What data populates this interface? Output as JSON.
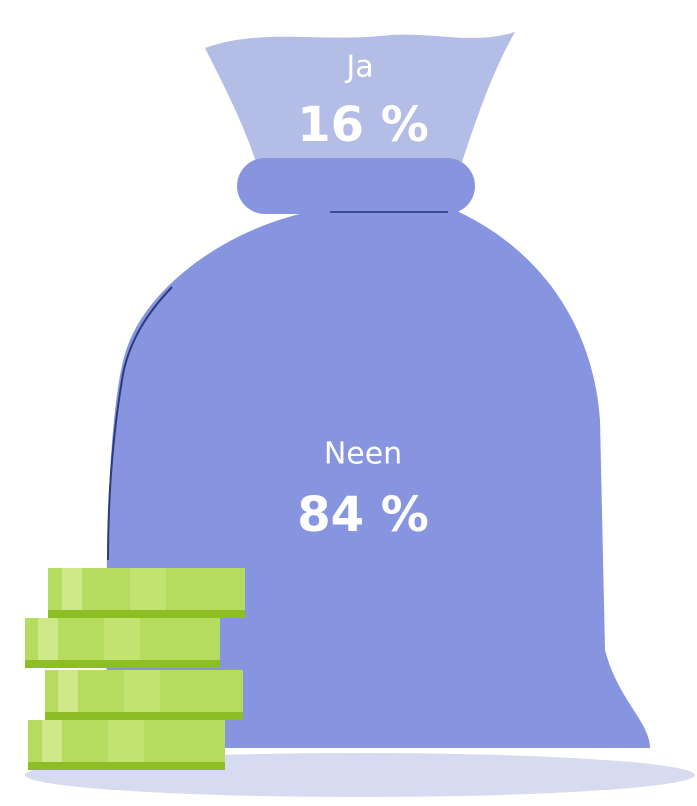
{
  "chart_data": {
    "type": "pictorial",
    "categories": [
      "Ja",
      "Neen"
    ],
    "values": [
      16,
      84
    ],
    "value_labels": [
      "16 %",
      "84 %"
    ],
    "colors": [
      "#b3bde6",
      "#8795e1"
    ]
  }
}
